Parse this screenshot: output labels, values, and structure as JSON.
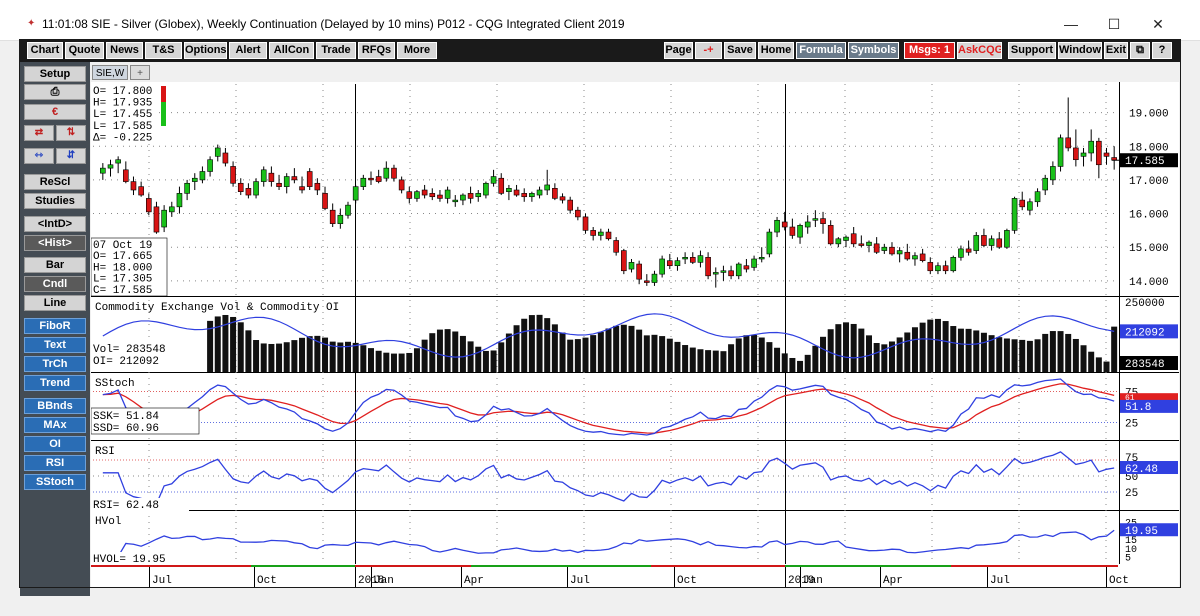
{
  "window": {
    "title": "11:01:08  SIE - Silver (Globex), Weekly Continuation (Delayed by 10 mins)  P012 - CQG Integrated Client 2019",
    "minimize": "—",
    "maximize": "☐",
    "close": "✕"
  },
  "menu_left": [
    "Chart",
    "Quote",
    "News",
    "T&S",
    "Options",
    "Alert",
    "AllCon",
    "Trade",
    "RFQs",
    "More"
  ],
  "menu_right": {
    "page": "Page",
    "plusminus": "-+",
    "save": "Save",
    "home": "Home",
    "formula": "Formula",
    "symbols": "Symbols",
    "msgs": "Msgs: 1",
    "askcqg": "AskCQG",
    "support": "Support",
    "window": "Window",
    "exit": "Exit"
  },
  "leftbar": {
    "setup": "Setup",
    "rescl": "ReScl",
    "studies": "Studies",
    "intd": "<IntD>",
    "hist": "<Hist>",
    "bar": "Bar",
    "cndl": "Cndl",
    "line": "Line",
    "fibor": "FiboR",
    "text": "Text",
    "trch": "TrCh",
    "trend": "Trend",
    "bbnds": "BBnds",
    "max": "MAx",
    "oi": "OI",
    "rsi": "RSI",
    "sstoch": "SStoch"
  },
  "tabs": {
    "active": "SIE,W",
    "add": "+"
  },
  "colors": {
    "up": "#19c019",
    "down": "#d81414",
    "line_blue": "#3040e0",
    "line_red": "#e02020",
    "bar": "#111111"
  },
  "chart_data": {
    "type": "candlestick",
    "symbol": "SIE",
    "current_bar": {
      "lines": [
        "O=  17.800",
        "H=  17.935",
        "L=  17.455",
        "L=  17.585",
        "Δ= -0.225"
      ]
    },
    "last_bar": {
      "lines": [
        "07 Oct 19",
        "O=  17.665",
        "H=  18.000",
        "L=  17.305",
        "C=  17.585"
      ]
    },
    "x_labels": [
      "Jul",
      "Oct",
      "2018",
      "Jan",
      "Apr",
      "Jul",
      "Oct",
      "2019",
      "Jan",
      "Apr",
      "Jul",
      "Oct"
    ],
    "price": {
      "yticks": [
        19.0,
        18.0,
        17.0,
        16.0,
        15.0,
        14.0
      ],
      "ytick_labels": [
        "19.000",
        "18.000",
        "17.000",
        "16.000",
        "15.000",
        "14.000"
      ],
      "last_label": "17.585",
      "ohlc": [
        [
          17.2,
          17.5,
          17.0,
          17.35
        ],
        [
          17.35,
          17.6,
          17.1,
          17.45
        ],
        [
          17.5,
          17.7,
          17.2,
          17.6
        ],
        [
          17.3,
          17.55,
          16.9,
          16.95
        ],
        [
          16.95,
          17.1,
          16.55,
          16.7
        ],
        [
          16.8,
          16.95,
          16.5,
          16.55
        ],
        [
          16.45,
          16.6,
          15.95,
          16.05
        ],
        [
          16.2,
          16.35,
          15.4,
          15.45
        ],
        [
          15.6,
          16.25,
          15.45,
          16.1
        ],
        [
          16.05,
          16.35,
          15.9,
          16.2
        ],
        [
          16.2,
          16.8,
          16.0,
          16.6
        ],
        [
          16.6,
          17.0,
          16.4,
          16.9
        ],
        [
          16.95,
          17.2,
          16.7,
          17.05
        ],
        [
          17.0,
          17.4,
          16.9,
          17.25
        ],
        [
          17.25,
          17.7,
          17.1,
          17.6
        ],
        [
          17.7,
          18.05,
          17.55,
          17.95
        ],
        [
          17.8,
          17.95,
          17.4,
          17.5
        ],
        [
          17.4,
          17.55,
          16.8,
          16.9
        ],
        [
          16.9,
          17.05,
          16.55,
          16.65
        ],
        [
          16.75,
          16.9,
          16.45,
          16.55
        ],
        [
          16.55,
          17.05,
          16.45,
          16.95
        ],
        [
          16.95,
          17.4,
          16.8,
          17.3
        ],
        [
          17.2,
          17.4,
          16.8,
          16.95
        ],
        [
          16.9,
          17.15,
          16.7,
          16.8
        ],
        [
          16.8,
          17.2,
          16.6,
          17.1
        ],
        [
          17.1,
          17.35,
          16.9,
          17.0
        ],
        [
          16.8,
          17.1,
          16.6,
          16.7
        ],
        [
          17.25,
          17.35,
          16.7,
          16.8
        ],
        [
          16.9,
          17.05,
          16.55,
          16.7
        ],
        [
          16.6,
          16.8,
          16.1,
          16.15
        ],
        [
          16.1,
          16.3,
          15.6,
          15.7
        ],
        [
          15.7,
          16.15,
          15.55,
          15.95
        ],
        [
          15.95,
          16.35,
          15.85,
          16.25
        ],
        [
          16.4,
          16.85,
          16.3,
          16.8
        ],
        [
          16.8,
          17.15,
          16.7,
          17.05
        ],
        [
          17.05,
          17.25,
          16.85,
          17.0
        ],
        [
          17.1,
          17.3,
          16.9,
          16.95
        ],
        [
          17.05,
          17.55,
          16.95,
          17.35
        ],
        [
          17.35,
          17.45,
          16.95,
          17.05
        ],
        [
          17.0,
          17.1,
          16.6,
          16.7
        ],
        [
          16.65,
          16.8,
          16.3,
          16.45
        ],
        [
          16.45,
          16.7,
          16.35,
          16.65
        ],
        [
          16.7,
          16.85,
          16.45,
          16.55
        ],
        [
          16.6,
          16.75,
          16.4,
          16.5
        ],
        [
          16.55,
          16.7,
          16.35,
          16.45
        ],
        [
          16.45,
          16.8,
          16.3,
          16.7
        ],
        [
          16.35,
          16.55,
          16.2,
          16.4
        ],
        [
          16.4,
          16.6,
          16.25,
          16.55
        ],
        [
          16.6,
          16.8,
          16.3,
          16.45
        ],
        [
          16.5,
          16.7,
          16.35,
          16.6
        ],
        [
          16.55,
          16.95,
          16.45,
          16.9
        ],
        [
          16.9,
          17.3,
          16.8,
          17.1
        ],
        [
          17.05,
          17.2,
          16.55,
          16.6
        ],
        [
          16.65,
          16.85,
          16.4,
          16.75
        ],
        [
          16.7,
          16.85,
          16.5,
          16.55
        ],
        [
          16.6,
          16.75,
          16.35,
          16.5
        ],
        [
          16.5,
          16.65,
          16.35,
          16.6
        ],
        [
          16.55,
          16.8,
          16.45,
          16.7
        ],
        [
          16.7,
          17.3,
          16.55,
          16.85
        ],
        [
          16.75,
          16.9,
          16.4,
          16.45
        ],
        [
          16.5,
          16.6,
          16.3,
          16.4
        ],
        [
          16.4,
          16.5,
          16.0,
          16.1
        ],
        [
          16.1,
          16.2,
          15.8,
          15.9
        ],
        [
          15.9,
          16.0,
          15.4,
          15.5
        ],
        [
          15.5,
          15.6,
          15.2,
          15.35
        ],
        [
          15.35,
          15.55,
          15.2,
          15.45
        ],
        [
          15.45,
          15.55,
          15.2,
          15.25
        ],
        [
          15.2,
          15.3,
          14.75,
          14.85
        ],
        [
          14.9,
          14.95,
          14.2,
          14.3
        ],
        [
          14.35,
          14.65,
          14.25,
          14.55
        ],
        [
          14.5,
          14.6,
          13.9,
          14.05
        ],
        [
          14.0,
          14.2,
          13.85,
          13.95
        ],
        [
          13.95,
          14.3,
          13.85,
          14.2
        ],
        [
          14.2,
          14.75,
          14.1,
          14.65
        ],
        [
          14.6,
          14.8,
          14.35,
          14.45
        ],
        [
          14.45,
          14.7,
          14.3,
          14.6
        ],
        [
          14.65,
          14.85,
          14.5,
          14.7
        ],
        [
          14.7,
          14.85,
          14.5,
          14.55
        ],
        [
          14.55,
          14.9,
          14.4,
          14.75
        ],
        [
          14.7,
          14.85,
          14.05,
          14.15
        ],
        [
          14.2,
          14.4,
          13.8,
          14.25
        ],
        [
          14.25,
          14.45,
          14.0,
          14.3
        ],
        [
          14.3,
          14.45,
          14.05,
          14.15
        ],
        [
          14.15,
          14.55,
          14.05,
          14.5
        ],
        [
          14.45,
          14.65,
          14.25,
          14.35
        ],
        [
          14.4,
          14.75,
          14.3,
          14.65
        ],
        [
          14.65,
          15.0,
          14.55,
          14.7
        ],
        [
          14.8,
          15.55,
          14.7,
          15.45
        ],
        [
          15.45,
          15.9,
          15.3,
          15.8
        ],
        [
          15.75,
          16.05,
          15.5,
          15.6
        ],
        [
          15.6,
          15.85,
          15.25,
          15.35
        ],
        [
          15.3,
          15.7,
          15.1,
          15.65
        ],
        [
          15.6,
          15.95,
          15.4,
          15.75
        ],
        [
          15.8,
          16.1,
          15.6,
          15.85
        ],
        [
          15.85,
          16.05,
          15.4,
          15.7
        ],
        [
          15.65,
          15.8,
          15.05,
          15.1
        ],
        [
          15.1,
          15.3,
          15.0,
          15.25
        ],
        [
          15.2,
          15.35,
          15.0,
          15.3
        ],
        [
          15.4,
          15.6,
          15.0,
          15.1
        ],
        [
          15.1,
          15.35,
          15.0,
          15.05
        ],
        [
          15.05,
          15.2,
          14.85,
          15.15
        ],
        [
          15.1,
          15.3,
          14.8,
          14.85
        ],
        [
          14.9,
          15.1,
          14.8,
          15.0
        ],
        [
          15.0,
          15.15,
          14.75,
          14.8
        ],
        [
          14.8,
          15.0,
          14.55,
          14.9
        ],
        [
          14.85,
          15.1,
          14.6,
          14.65
        ],
        [
          14.65,
          14.85,
          14.45,
          14.75
        ],
        [
          14.8,
          14.95,
          14.55,
          14.6
        ],
        [
          14.55,
          14.7,
          14.2,
          14.3
        ],
        [
          14.3,
          14.55,
          14.2,
          14.45
        ],
        [
          14.45,
          14.6,
          14.2,
          14.3
        ],
        [
          14.3,
          14.75,
          14.25,
          14.7
        ],
        [
          14.7,
          15.05,
          14.6,
          14.95
        ],
        [
          14.95,
          15.2,
          14.75,
          14.85
        ],
        [
          14.9,
          15.45,
          14.8,
          15.35
        ],
        [
          15.35,
          15.55,
          15.0,
          15.05
        ],
        [
          15.05,
          15.35,
          14.9,
          15.25
        ],
        [
          15.25,
          15.45,
          14.95,
          15.0
        ],
        [
          15.0,
          15.55,
          14.95,
          15.5
        ],
        [
          15.5,
          16.5,
          15.4,
          16.45
        ],
        [
          16.4,
          16.65,
          16.1,
          16.2
        ],
        [
          16.1,
          16.45,
          15.95,
          16.35
        ],
        [
          16.35,
          16.75,
          16.2,
          16.65
        ],
        [
          16.7,
          17.15,
          16.55,
          17.05
        ],
        [
          17.0,
          17.55,
          16.85,
          17.4
        ],
        [
          17.4,
          18.35,
          17.25,
          18.25
        ],
        [
          18.25,
          19.45,
          17.85,
          17.95
        ],
        [
          17.95,
          18.5,
          17.4,
          17.6
        ],
        [
          17.7,
          17.95,
          17.4,
          17.8
        ],
        [
          17.8,
          18.5,
          17.55,
          18.15
        ],
        [
          18.15,
          18.25,
          17.05,
          17.45
        ],
        [
          17.8,
          17.95,
          17.45,
          17.7
        ],
        [
          17.665,
          18.0,
          17.305,
          17.585
        ]
      ]
    },
    "volume_oi": {
      "title": "Commodity Exchange Vol & Commodity OI",
      "vol_label": "Vol=     283548",
      "oi_label": "OI=      212092",
      "ytick_labels": [
        "250000"
      ],
      "oi_last_label": "212092",
      "vol_last_label": "283548",
      "vol_range": [
        0,
        450000
      ],
      "oi_range": [
        150000,
        260000
      ]
    },
    "sstoch": {
      "title": "SStoch",
      "ssk_label": "SSK=     51.84",
      "ssd_label": "SSD=     60.96",
      "ytick_labels": [
        "75",
        "25"
      ],
      "ssk_last_label": "51.8",
      "ssd_last_label": "61",
      "levels": [
        75,
        25
      ]
    },
    "rsi": {
      "title": "RSI",
      "value_label": "RSI=    62.48",
      "ytick_labels": [
        "75",
        "50",
        "25"
      ],
      "last_label": "62.48",
      "levels": [
        75,
        25
      ]
    },
    "hvol": {
      "title": "HVol",
      "value_label": "HVOL=    19.95",
      "ytick_labels": [
        "25",
        "15",
        "10",
        "5"
      ],
      "last_label": "19.95"
    }
  }
}
